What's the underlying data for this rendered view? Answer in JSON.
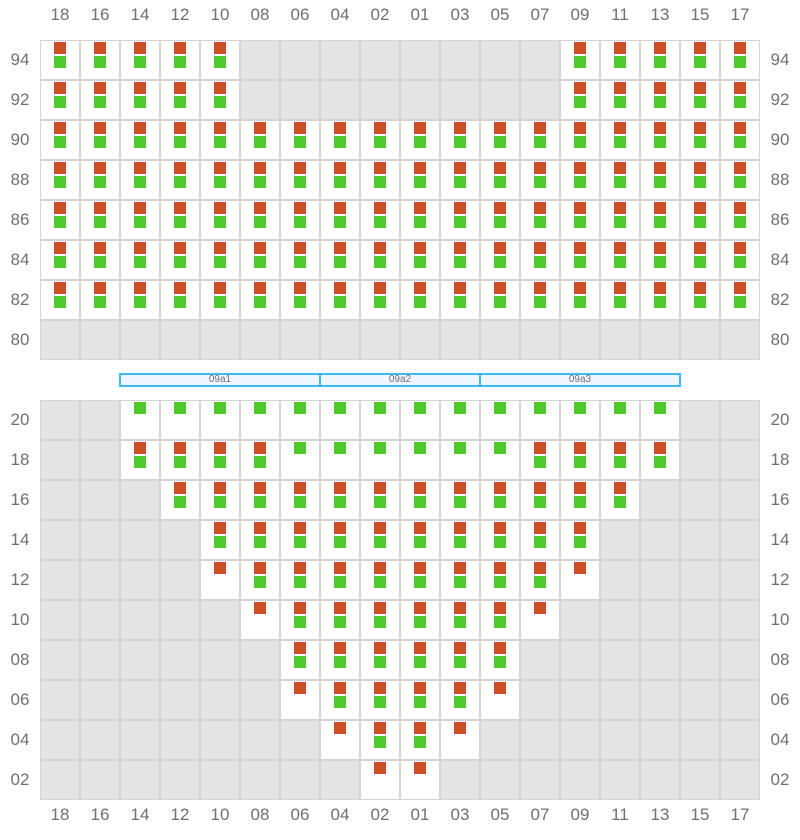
{
  "colors": {
    "orange": "#cc5128",
    "green": "#4ecb2a",
    "unavailable": "#e4e4e7",
    "grid": "#d4d4d8",
    "section": "#3db8f0"
  },
  "columns": [
    "18",
    "16",
    "14",
    "12",
    "10",
    "08",
    "06",
    "04",
    "02",
    "01",
    "03",
    "05",
    "07",
    "09",
    "11",
    "13",
    "15",
    "17"
  ],
  "sections": [
    {
      "label": "09a1",
      "from": "14",
      "to": "06"
    },
    {
      "label": "09a2",
      "from": "04",
      "to": "03"
    },
    {
      "label": "09a3",
      "from": "05",
      "to": "13"
    }
  ],
  "blocks": [
    {
      "rows": [
        {
          "label": "94",
          "cells": [
            "og",
            "og",
            "og",
            "og",
            "og",
            "x",
            "x",
            "x",
            "x",
            "x",
            "x",
            "x",
            "x",
            "og",
            "og",
            "og",
            "og",
            "og"
          ]
        },
        {
          "label": "92",
          "cells": [
            "og",
            "og",
            "og",
            "og",
            "og",
            "x",
            "x",
            "x",
            "x",
            "x",
            "x",
            "x",
            "x",
            "og",
            "og",
            "og",
            "og",
            "og"
          ]
        },
        {
          "label": "90",
          "cells": [
            "og",
            "og",
            "og",
            "og",
            "og",
            "og",
            "og",
            "og",
            "og",
            "og",
            "og",
            "og",
            "og",
            "og",
            "og",
            "og",
            "og",
            "og"
          ]
        },
        {
          "label": "88",
          "cells": [
            "og",
            "og",
            "og",
            "og",
            "og",
            "og",
            "og",
            "og",
            "og",
            "og",
            "og",
            "og",
            "og",
            "og",
            "og",
            "og",
            "og",
            "og"
          ]
        },
        {
          "label": "86",
          "cells": [
            "og",
            "og",
            "og",
            "og",
            "og",
            "og",
            "og",
            "og",
            "og",
            "og",
            "og",
            "og",
            "og",
            "og",
            "og",
            "og",
            "og",
            "og"
          ]
        },
        {
          "label": "84",
          "cells": [
            "og",
            "og",
            "og",
            "og",
            "og",
            "og",
            "og",
            "og",
            "og",
            "og",
            "og",
            "og",
            "og",
            "og",
            "og",
            "og",
            "og",
            "og"
          ]
        },
        {
          "label": "82",
          "cells": [
            "og",
            "og",
            "og",
            "og",
            "og",
            "og",
            "og",
            "og",
            "og",
            "og",
            "og",
            "og",
            "og",
            "og",
            "og",
            "og",
            "og",
            "og"
          ]
        },
        {
          "label": "80",
          "cells": [
            "x",
            "x",
            "x",
            "x",
            "x",
            "x",
            "x",
            "x",
            "x",
            "x",
            "x",
            "x",
            "x",
            "x",
            "x",
            "x",
            "x",
            "x"
          ]
        }
      ]
    },
    {
      "rows": [
        {
          "label": "20",
          "cells": [
            "x",
            "x",
            "g",
            "g",
            "g",
            "g",
            "g",
            "g",
            "g",
            "g",
            "g",
            "g",
            "g",
            "g",
            "g",
            "g",
            "x",
            "x"
          ]
        },
        {
          "label": "18",
          "cells": [
            "x",
            "x",
            "og",
            "og",
            "og",
            "og",
            "g",
            "g",
            "g",
            "g",
            "g",
            "g",
            "og",
            "og",
            "og",
            "og",
            "x",
            "x"
          ]
        },
        {
          "label": "16",
          "cells": [
            "x",
            "x",
            "x",
            "og",
            "og",
            "og",
            "og",
            "og",
            "og",
            "og",
            "og",
            "og",
            "og",
            "og",
            "og",
            "x",
            "x",
            "x"
          ]
        },
        {
          "label": "14",
          "cells": [
            "x",
            "x",
            "x",
            "x",
            "og",
            "og",
            "og",
            "og",
            "og",
            "og",
            "og",
            "og",
            "og",
            "og",
            "x",
            "x",
            "x",
            "x"
          ]
        },
        {
          "label": "12",
          "cells": [
            "x",
            "x",
            "x",
            "x",
            "o",
            "og",
            "og",
            "og",
            "og",
            "og",
            "og",
            "og",
            "og",
            "o",
            "x",
            "x",
            "x",
            "x"
          ]
        },
        {
          "label": "10",
          "cells": [
            "x",
            "x",
            "x",
            "x",
            "x",
            "o",
            "og",
            "og",
            "og",
            "og",
            "og",
            "og",
            "o",
            "x",
            "x",
            "x",
            "x",
            "x"
          ]
        },
        {
          "label": "08",
          "cells": [
            "x",
            "x",
            "x",
            "x",
            "x",
            "x",
            "og",
            "og",
            "og",
            "og",
            "og",
            "og",
            "x",
            "x",
            "x",
            "x",
            "x",
            "x"
          ]
        },
        {
          "label": "06",
          "cells": [
            "x",
            "x",
            "x",
            "x",
            "x",
            "x",
            "o",
            "og",
            "og",
            "og",
            "og",
            "o",
            "x",
            "x",
            "x",
            "x",
            "x",
            "x"
          ]
        },
        {
          "label": "04",
          "cells": [
            "x",
            "x",
            "x",
            "x",
            "x",
            "x",
            "x",
            "o",
            "og",
            "og",
            "o",
            "x",
            "x",
            "x",
            "x",
            "x",
            "x",
            "x"
          ]
        },
        {
          "label": "02",
          "cells": [
            "x",
            "x",
            "x",
            "x",
            "x",
            "x",
            "x",
            "x",
            "o",
            "o",
            "x",
            "x",
            "x",
            "x",
            "x",
            "x",
            "x",
            "x"
          ]
        }
      ]
    }
  ]
}
